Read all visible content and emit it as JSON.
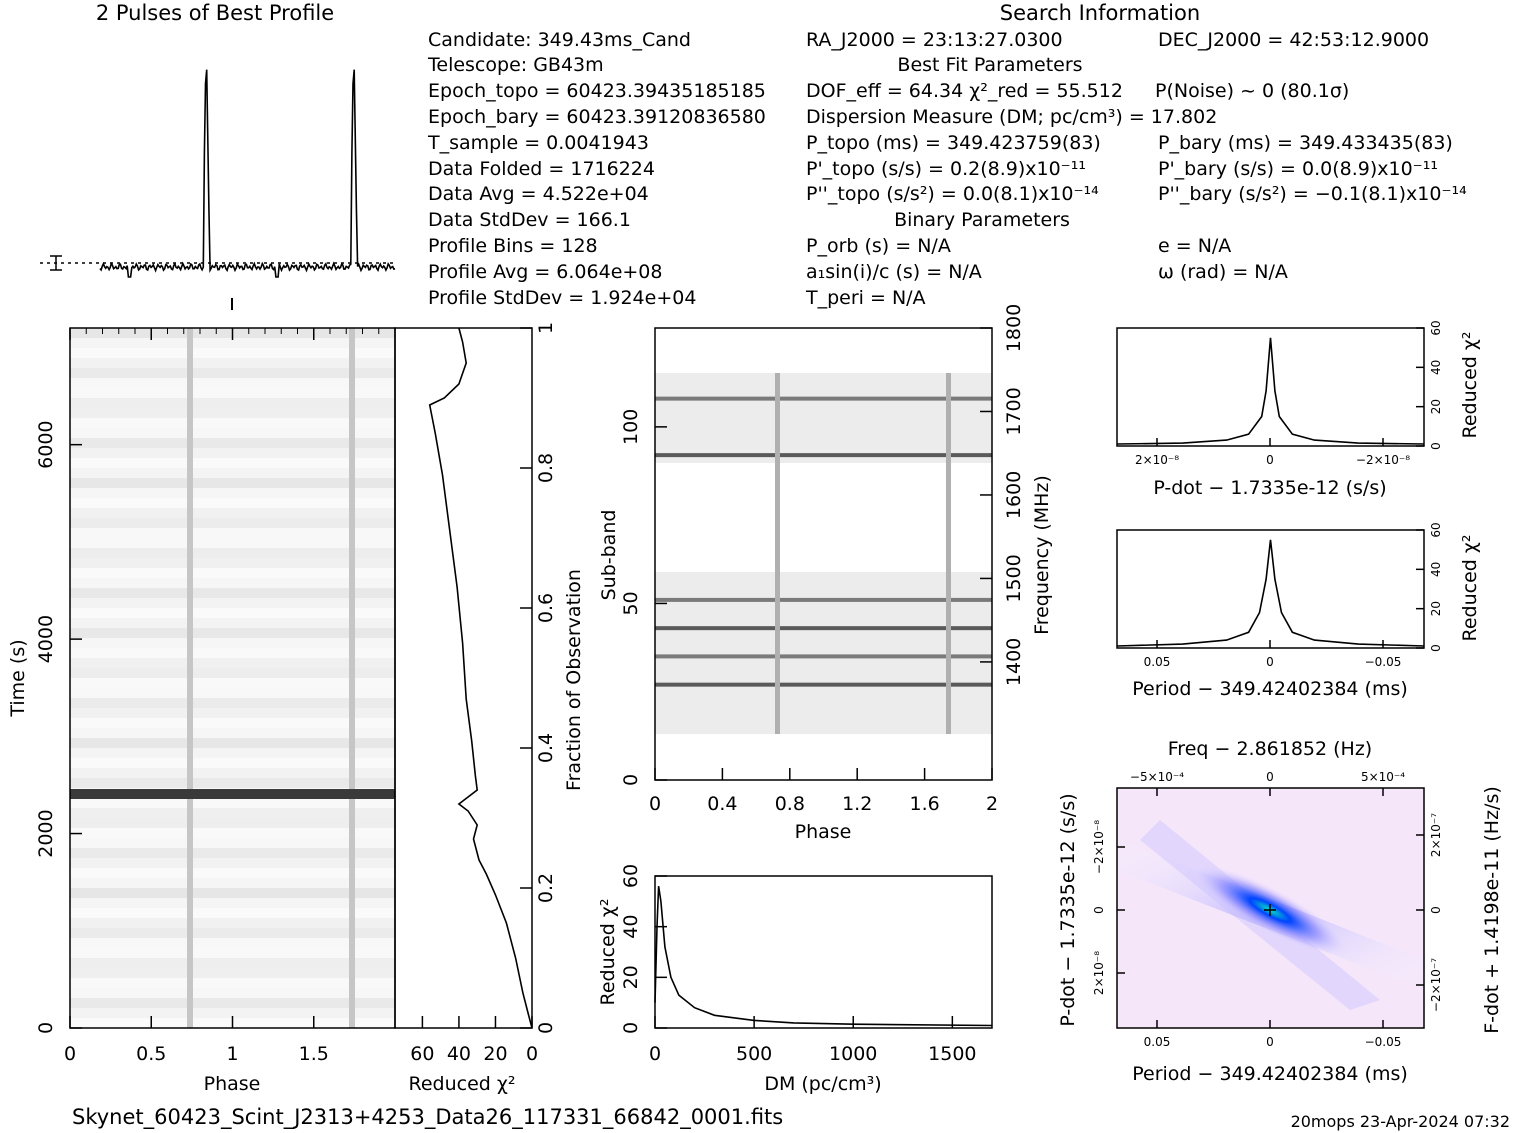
{
  "profile_title": "2 Pulses of Best Profile",
  "search_title": "Search Information",
  "candidate": {
    "Candidate": "Candidate:  349.43ms_Cand",
    "Telescope": "Telescope:  GB43m",
    "Epoch_topo": "Epoch_topo = 60423.39435185185",
    "Epoch_bary": "Epoch_bary = 60423.39120836580",
    "T_sample": "T_sample    =  0.0041943",
    "Data_Folded": "Data Folded  =  1716224",
    "Data_Avg": "Data Avg     =  4.522e+04",
    "Data_StdDev": "Data StdDev  =  166.1",
    "Profile_Bins": "Profile Bins  =  128",
    "Profile_Avg": "Profile Avg   =  6.064e+08",
    "Profile_StdDev": "Profile StdDev =  1.924e+04"
  },
  "search": {
    "ra": "RA_J2000 = 23:13:27.0300",
    "dec": "DEC_J2000 = 42:53:12.9000",
    "best_fit_header": "Best Fit Parameters",
    "dof": "DOF_eff = 64.34  χ²_red = 55.512",
    "pnoise": "P(Noise) ~ 0   (80.1σ)",
    "dm": "Dispersion Measure (DM; pc/cm³) = 17.802",
    "ptopo": "P_topo (ms) =  349.423759(83)",
    "pbary": "P_bary (ms) =  349.433435(83)",
    "pdtopo": "P'_topo (s/s) =  0.2(8.9)x10⁻¹¹",
    "pdbary": "P'_bary (s/s) = 0.0(8.9)x10⁻¹¹",
    "pddtopo": "P''_topo (s/s²) = 0.0(8.1)x10⁻¹⁴",
    "pddbary": "P''_bary (s/s²) = −0.1(8.1)x10⁻¹⁴",
    "binary_header": "Binary Parameters",
    "porb": "P_orb (s) = N/A",
    "e": "e = N/A",
    "a1sini": "a₁sin(i)/c (s) = N/A",
    "omega": "ω (rad) = N/A",
    "tperi": "T_peri = N/A"
  },
  "footer": {
    "filename": "Skynet_60423_Scint_J2313+4253_Data26_117331_66842_0001.fits",
    "stamp": "20mops 23-Apr-2024 07:32"
  },
  "colors": {
    "ink": "#000000",
    "grid_bg": "#ffffff",
    "heat_low": "#ffffff",
    "heat_mid": "#3333ff",
    "heat_peak": "#00e0c0"
  },
  "chart_data": [
    {
      "id": "profile",
      "type": "line",
      "title": "2 Pulses of Best Profile",
      "xlabel": "",
      "ylabel": "",
      "x_range": [
        0,
        2
      ],
      "peaks_phase": [
        0.72,
        1.72
      ],
      "baseline_dotted": true
    },
    {
      "id": "time_phase",
      "type": "heatmap",
      "xlabel": "Phase",
      "ylabel": "Time (s)",
      "xlim": [
        0,
        2
      ],
      "ylim": [
        0,
        7200
      ],
      "xticks": [
        "0",
        "0.5",
        "1",
        "1.5"
      ],
      "yticks": [
        "0",
        "2000",
        "4000",
        "6000"
      ],
      "pulse_phases": [
        0.72,
        1.72
      ],
      "bright_row_time": 2440
    },
    {
      "id": "chi2_vs_time",
      "type": "line",
      "xlabel": "Reduced χ²",
      "ylabel": "Fraction of Observation",
      "xticks": [
        "60",
        "40",
        "20",
        "0"
      ],
      "yticks": [
        "0",
        "0.2",
        "0.4",
        "0.6",
        "0.8",
        "1"
      ],
      "xlim": [
        75,
        0
      ],
      "ylim": [
        0,
        1
      ],
      "points": [
        [
          0,
          0
        ],
        [
          2,
          0.02
        ],
        [
          5,
          0.05
        ],
        [
          9,
          0.1
        ],
        [
          14,
          0.15
        ],
        [
          20,
          0.19
        ],
        [
          25,
          0.22
        ],
        [
          29,
          0.24
        ],
        [
          32,
          0.27
        ],
        [
          30,
          0.29
        ],
        [
          35,
          0.31
        ],
        [
          40,
          0.32
        ],
        [
          30,
          0.34
        ],
        [
          31,
          0.36
        ],
        [
          33,
          0.41
        ],
        [
          36,
          0.47
        ],
        [
          38,
          0.55
        ],
        [
          41,
          0.63
        ],
        [
          45,
          0.71
        ],
        [
          49,
          0.79
        ],
        [
          53,
          0.85
        ],
        [
          56,
          0.89
        ],
        [
          48,
          0.9
        ],
        [
          40,
          0.92
        ],
        [
          36,
          0.95
        ],
        [
          38,
          0.98
        ],
        [
          40,
          1.0
        ]
      ]
    },
    {
      "id": "subband_phase",
      "type": "heatmap",
      "xlabel": "Phase",
      "ylabel": "Sub-band",
      "y2label": "Frequency (MHz)",
      "xlim": [
        0,
        2
      ],
      "ylim": [
        0,
        128
      ],
      "xticks": [
        "0",
        "0.4",
        "0.8",
        "1.2",
        "1.6",
        "2"
      ],
      "yticks": [
        "0",
        "50",
        "100"
      ],
      "y2ticks": [
        "1400",
        "1500",
        "1600",
        "1700",
        "1800"
      ],
      "pulse_phases": [
        0.74,
        1.74
      ],
      "strong_subbands": [
        27,
        35,
        43,
        51,
        92,
        108
      ]
    },
    {
      "id": "chi2_vs_dm",
      "type": "line",
      "xlabel": "DM (pc/cm³)",
      "ylabel": "Reduced χ²",
      "xlim": [
        0,
        1700
      ],
      "ylim": [
        0,
        60
      ],
      "xticks": [
        "0",
        "500",
        "1000",
        "1500"
      ],
      "yticks": [
        "0",
        "20",
        "40",
        "60"
      ],
      "points": [
        [
          0,
          10
        ],
        [
          10,
          40
        ],
        [
          18,
          56
        ],
        [
          30,
          50
        ],
        [
          50,
          32
        ],
        [
          80,
          20
        ],
        [
          120,
          13
        ],
        [
          200,
          8
        ],
        [
          300,
          5
        ],
        [
          500,
          3
        ],
        [
          700,
          2
        ],
        [
          1000,
          1.5
        ],
        [
          1700,
          1
        ]
      ]
    },
    {
      "id": "chi2_vs_pdot",
      "type": "line",
      "xlabel": "P-dot − 1.7335e-12 (s/s)",
      "ylabel": "Reduced χ²",
      "xticks": [
        "2×10⁻⁸",
        "0",
        "−2×10⁻⁸"
      ],
      "yticks": [
        "0",
        "20",
        "40",
        "60"
      ],
      "xlim": [
        3.5e-08,
        -3.5e-08
      ],
      "ylim": [
        0,
        60
      ],
      "points": [
        [
          3.5e-08,
          1
        ],
        [
          2e-08,
          1.5
        ],
        [
          1e-08,
          3
        ],
        [
          5e-09,
          6
        ],
        [
          2e-09,
          15
        ],
        [
          1e-09,
          28
        ],
        [
          0,
          55
        ],
        [
          -1e-09,
          28
        ],
        [
          -2e-09,
          15
        ],
        [
          -5e-09,
          6
        ],
        [
          -1e-08,
          3
        ],
        [
          -2e-08,
          1.5
        ],
        [
          -3.5e-08,
          1
        ]
      ]
    },
    {
      "id": "chi2_vs_period",
      "type": "line",
      "xlabel": "Period − 349.42402384 (ms)",
      "ylabel": "Reduced χ²",
      "xticks": [
        "0.05",
        "0",
        "−0.05"
      ],
      "yticks": [
        "0",
        "20",
        "40",
        "60"
      ],
      "xlim": [
        0.07,
        -0.07
      ],
      "ylim": [
        0,
        60
      ],
      "points": [
        [
          0.07,
          1
        ],
        [
          0.04,
          2
        ],
        [
          0.02,
          4
        ],
        [
          0.01,
          8
        ],
        [
          0.005,
          18
        ],
        [
          0.002,
          35
        ],
        [
          0,
          55
        ],
        [
          -0.002,
          35
        ],
        [
          -0.005,
          18
        ],
        [
          -0.01,
          8
        ],
        [
          -0.02,
          4
        ],
        [
          -0.04,
          2
        ],
        [
          -0.07,
          1
        ]
      ]
    },
    {
      "id": "period_pdot_plane",
      "type": "heatmap",
      "title": "Freq − 2.861852 (Hz)",
      "xlabel": "Period − 349.42402384 (ms)",
      "ylabel": "P-dot − 1.7335e-12 (s/s)",
      "y2label": "F-dot + 1.4198e-11 (Hz/s)",
      "xticks": [
        "0.05",
        "0",
        "−0.05"
      ],
      "x2ticks": [
        "−5×10⁻⁴",
        "0",
        "5×10⁻⁴"
      ],
      "yticks": [
        "2×10⁻⁸",
        "0",
        "−2×10⁻⁸"
      ],
      "y2ticks": [
        "−2×10⁻⁷",
        "0",
        "2×10⁻⁷"
      ]
    }
  ]
}
